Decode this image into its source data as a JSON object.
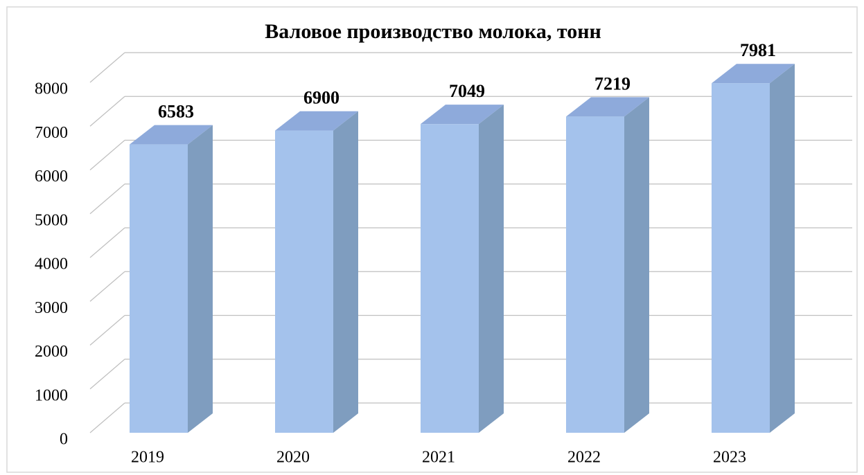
{
  "chart_data": {
    "type": "bar3d",
    "title": "Валовое производство молока, тонн",
    "categories": [
      "2019",
      "2020",
      "2021",
      "2022",
      "2023"
    ],
    "values": [
      6583,
      6900,
      7049,
      7219,
      7981
    ],
    "color": "#a4c2ec",
    "ylim": [
      0,
      8000
    ],
    "yticks": [
      0,
      1000,
      2000,
      3000,
      4000,
      5000,
      6000,
      7000,
      8000
    ],
    "grid": true
  }
}
